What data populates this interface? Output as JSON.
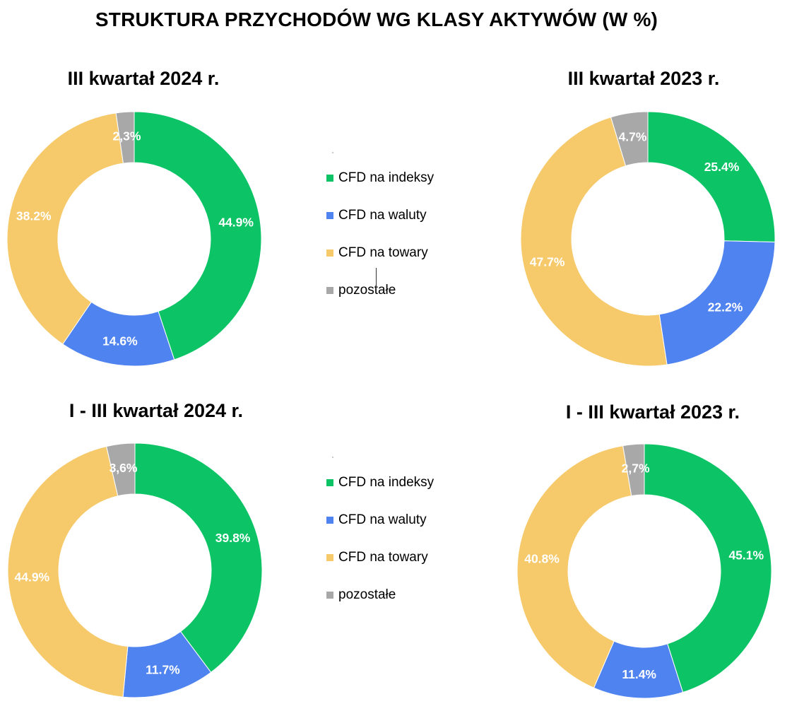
{
  "title": "STRUKTURA PRZYCHODÓW WG KLASY AKTYWÓW (W %)",
  "legend": [
    {
      "label": "CFD na indeksy",
      "color": "#0cc466"
    },
    {
      "label": "CFD na waluty",
      "color": "#4f83ef"
    },
    {
      "label": "CFD na towary",
      "color": "#f6c96a"
    },
    {
      "label": "pozostałe",
      "color": "#a8a8a8"
    }
  ],
  "chart_data": [
    {
      "type": "pie",
      "variant": "donut",
      "title": "III kwartał 2024 r.",
      "categories": [
        "CFD na indeksy",
        "CFD na waluty",
        "CFD na towary",
        "pozostałe"
      ],
      "values": [
        44.9,
        14.6,
        38.2,
        2.3
      ],
      "labels": [
        "44.9%",
        "14.6%",
        "38.2%",
        "2,3%"
      ],
      "colors": [
        "#0cc466",
        "#4f83ef",
        "#f6c96a",
        "#a8a8a8"
      ]
    },
    {
      "type": "pie",
      "variant": "donut",
      "title": "III kwartał 2023 r.",
      "categories": [
        "CFD na indeksy",
        "CFD na waluty",
        "CFD na towary",
        "pozostałe"
      ],
      "values": [
        25.4,
        22.2,
        47.7,
        4.7
      ],
      "labels": [
        "25.4%",
        "22.2%",
        "47.7%",
        "4.7%"
      ],
      "colors": [
        "#0cc466",
        "#4f83ef",
        "#f6c96a",
        "#a8a8a8"
      ]
    },
    {
      "type": "pie",
      "variant": "donut",
      "title": "I - III kwartał 2024 r.",
      "categories": [
        "CFD na indeksy",
        "CFD na waluty",
        "CFD na towary",
        "pozostałe"
      ],
      "values": [
        39.8,
        11.7,
        44.9,
        3.6
      ],
      "labels": [
        "39.8%",
        "11.7%",
        "44.9%",
        "3,6%"
      ],
      "colors": [
        "#0cc466",
        "#4f83ef",
        "#f6c96a",
        "#a8a8a8"
      ]
    },
    {
      "type": "pie",
      "variant": "donut",
      "title": "I - III kwartał 2023 r.",
      "categories": [
        "CFD na indeksy",
        "CFD na waluty",
        "CFD na towary",
        "pozostałe"
      ],
      "values": [
        45.1,
        11.4,
        40.8,
        2.7
      ],
      "labels": [
        "45.1%",
        "11.4%",
        "40.8%",
        "2,7%"
      ],
      "colors": [
        "#0cc466",
        "#4f83ef",
        "#f6c96a",
        "#a8a8a8"
      ]
    }
  ]
}
